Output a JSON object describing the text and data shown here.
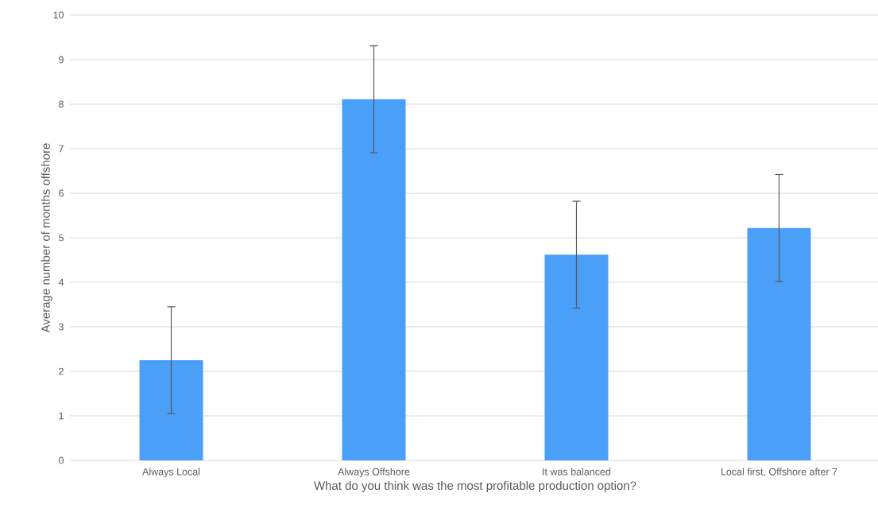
{
  "chart_data": {
    "type": "bar",
    "categories": [
      "Always Local",
      "Always Offshore",
      "It was balanced",
      "Local first, Offshore after 7"
    ],
    "values": [
      2.25,
      8.11,
      4.62,
      5.22
    ],
    "errors": [
      1.2,
      1.2,
      1.2,
      1.2
    ],
    "color": "#4a9ff9",
    "xlabel": "What do you think was the most profitable production option?",
    "ylabel": "Average number of months offshore",
    "ylim": [
      0,
      10
    ],
    "yticks": [
      0,
      1,
      2,
      3,
      4,
      5,
      6,
      7,
      8,
      9,
      10
    ],
    "grid": "y"
  }
}
